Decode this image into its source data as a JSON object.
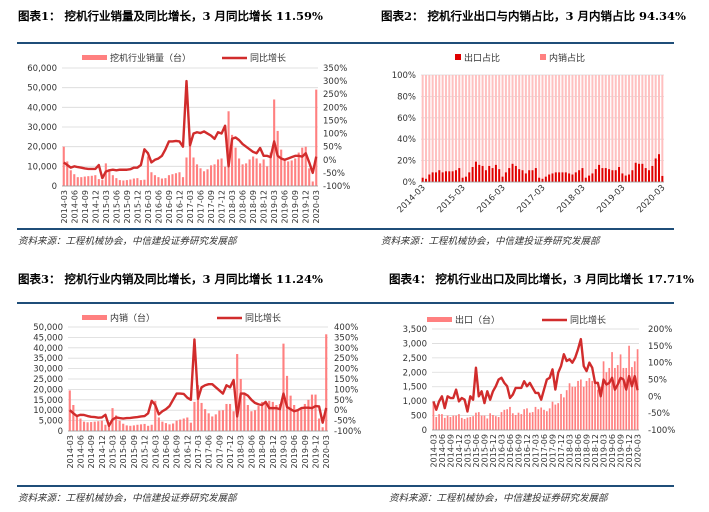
{
  "source": "资料来源：工程机械协会，中信建投证券研究发展部",
  "chart_data": [
    {
      "type": "bar+line",
      "title": "图表1：  挖机行业销量及同比增长，3 月同比增长 11.59%",
      "legend": [
        "挖机行业销量（台）",
        "同比增长"
      ],
      "legend_placement": "top",
      "y_left": {
        "ticks": [
          "0",
          "10,000",
          "20,000",
          "30,000",
          "40,000",
          "50,000",
          "60,000"
        ],
        "range": [
          0,
          60000
        ]
      },
      "y_right": {
        "ticks": [
          "-100%",
          "-50%",
          "0%",
          "50%",
          "100%",
          "150%",
          "200%",
          "250%",
          "300%",
          "350%"
        ],
        "range": [
          -100,
          350
        ]
      },
      "x_start": "2014-03",
      "x_end": "2020-03",
      "x_ticks": [
        "2014-03",
        "2014-06",
        "2014-09",
        "2014-12",
        "2015-03",
        "2015-06",
        "2015-09",
        "2015-12",
        "2016-03",
        "2016-06",
        "2016-09",
        "2016-12",
        "2017-03",
        "2017-06",
        "2017-09",
        "2017-12",
        "2018-03",
        "2018-06",
        "2018-09",
        "2018-12",
        "2019-03",
        "2019-06",
        "2019-09",
        "2019-12",
        "2020-03"
      ],
      "bars": [
        20000,
        12500,
        8000,
        6000,
        4500,
        4500,
        4800,
        5000,
        5200,
        5500,
        3500,
        3000,
        11500,
        7500,
        5500,
        4000,
        3000,
        2800,
        3000,
        3300,
        3800,
        4000,
        3000,
        3200,
        15000,
        7000,
        5500,
        4500,
        3800,
        4000,
        5500,
        6000,
        6500,
        7000,
        4500,
        14500,
        23000,
        14500,
        11000,
        9000,
        7500,
        8500,
        10500,
        11000,
        13500,
        14000,
        9800,
        38000,
        26000,
        19500,
        14000,
        11000,
        11500,
        13500,
        15000,
        14000,
        11500,
        13500,
        10000,
        17000,
        44000,
        28000,
        18500,
        14000,
        12500,
        13000,
        14000,
        17000,
        19500,
        20000,
        9000,
        2300,
        49000
      ],
      "line": [
        -10,
        -20,
        -30,
        -25,
        -28,
        -30,
        -33,
        -35,
        -35,
        -35,
        -20,
        -70,
        -45,
        -40,
        -38,
        -40,
        -38,
        -38,
        -38,
        -36,
        -30,
        -30,
        -20,
        40,
        25,
        -10,
        0,
        5,
        15,
        40,
        70,
        70,
        72,
        70,
        50,
        300,
        55,
        100,
        105,
        102,
        108,
        100,
        92,
        80,
        105,
        100,
        130,
        -25,
        80,
        85,
        75,
        60,
        50,
        40,
        30,
        25,
        45,
        15,
        15,
        10,
        70,
        15,
        5,
        0,
        5,
        10,
        15,
        15,
        12,
        25,
        -10,
        -50,
        12
      ]
    },
    {
      "type": "stacked-bar",
      "title": "图表2：  挖机行业出口与内销占比，3 月内销占比 94.34%",
      "legend": [
        "出口占比",
        "内销占比"
      ],
      "legend_placement": "top",
      "y_left": {
        "ticks": [
          "0%",
          "20%",
          "40%",
          "60%",
          "80%",
          "100%"
        ],
        "range": [
          0,
          100
        ]
      },
      "x_ticks": [
        "2014-03",
        "2015-03",
        "2016-03",
        "2017-03",
        "2018-03",
        "2019-03",
        "2020-03"
      ],
      "bars": [
        4,
        3,
        7,
        9,
        9,
        11,
        9,
        10,
        10,
        10,
        11,
        13,
        4,
        5,
        9,
        14,
        19,
        16,
        15,
        11,
        15,
        13,
        16,
        12,
        5,
        9,
        13,
        17,
        15,
        12,
        11,
        8,
        11,
        11,
        13,
        4,
        3,
        5,
        7,
        8,
        9,
        9,
        9,
        9,
        8,
        7,
        9,
        11,
        13,
        4,
        6,
        8,
        12,
        16,
        13,
        13,
        12,
        11,
        11,
        14,
        8,
        6,
        7,
        11,
        18,
        17,
        17,
        13,
        11,
        15,
        22,
        26,
        5.66
      ]
    },
    {
      "type": "bar+line",
      "title": "图表3：  挖机行业内销及同比增长，3 月同比增长 11.24%",
      "legend": [
        "内销（台）",
        "同比增长"
      ],
      "legend_placement": "top",
      "y_left": {
        "ticks": [
          "0",
          "5,000",
          "10,000",
          "15,000",
          "20,000",
          "25,000",
          "30,000",
          "35,000",
          "40,000",
          "45,000",
          "50,000"
        ],
        "range": [
          0,
          50000
        ]
      },
      "y_right": {
        "ticks": [
          "-100%",
          "-50%",
          "0%",
          "50%",
          "100%",
          "150%",
          "200%",
          "250%",
          "300%",
          "350%",
          "400%"
        ],
        "range": [
          -100,
          400
        ]
      },
      "x_ticks": [
        "2014-03",
        "2014-06",
        "2014-09",
        "2014-12",
        "2015-03",
        "2015-06",
        "2015-09",
        "2015-12",
        "2016-03",
        "2016-06",
        "2016-09",
        "2016-12",
        "2017-03",
        "2017-06",
        "2017-09",
        "2017-12",
        "2018-03",
        "2018-06",
        "2018-09",
        "2018-12",
        "2019-03",
        "2019-06",
        "2019-09",
        "2019-12",
        "2020-03"
      ],
      "bars": [
        19500,
        12500,
        7500,
        6000,
        4500,
        4200,
        4300,
        4500,
        4700,
        5000,
        3000,
        2700,
        11000,
        7500,
        5000,
        3500,
        2700,
        2500,
        2700,
        3000,
        3200,
        3400,
        2500,
        3000,
        14500,
        6500,
        4500,
        3800,
        3200,
        3600,
        5000,
        5500,
        6000,
        6500,
        4000,
        14000,
        22000,
        13500,
        10500,
        8500,
        7000,
        8000,
        9800,
        10000,
        13000,
        13000,
        9500,
        37000,
        25000,
        17500,
        12500,
        9500,
        10000,
        12000,
        14000,
        14000,
        14500,
        14000,
        12500,
        13000,
        42000,
        26500,
        17000,
        12500,
        10000,
        11000,
        13000,
        15000,
        17500,
        17500,
        6000,
        1800,
        46500
      ],
      "line": [
        0,
        -15,
        -28,
        -22,
        -23,
        -28,
        -32,
        -33,
        -36,
        -35,
        -22,
        -75,
        -45,
        -35,
        -38,
        -40,
        -38,
        -37,
        -35,
        -33,
        -30,
        -28,
        -15,
        45,
        25,
        -20,
        -5,
        5,
        20,
        50,
        80,
        80,
        78,
        60,
        50,
        340,
        55,
        110,
        120,
        125,
        125,
        110,
        95,
        80,
        120,
        110,
        145,
        -30,
        80,
        80,
        70,
        50,
        35,
        28,
        25,
        40,
        10,
        10,
        10,
        5,
        80,
        15,
        5,
        -5,
        0,
        10,
        12,
        12,
        10,
        20,
        18,
        -60,
        11
      ]
    },
    {
      "type": "bar+line",
      "title": "图表4：  挖机行业出口及同比增长，3 月同比增长 17.71%",
      "legend": [
        "出口（台）",
        "同比增长"
      ],
      "legend_placement": "top",
      "y_left": {
        "ticks": [
          "0",
          "500",
          "1,000",
          "1,500",
          "2,000",
          "2,500",
          "3,000",
          "3,500"
        ],
        "range": [
          0,
          3500
        ]
      },
      "y_right": {
        "ticks": [
          "-100%",
          "-50%",
          "0%",
          "50%",
          "100%",
          "150%",
          "200%"
        ],
        "range": [
          -100,
          200
        ]
      },
      "x_ticks": [
        "2014-03",
        "2014-06",
        "2014-09",
        "2014-12",
        "2015-03",
        "2015-06",
        "2015-09",
        "2015-12",
        "2016-03",
        "2016-06",
        "2016-09",
        "2016-12",
        "2017-03",
        "2017-06",
        "2017-09",
        "2017-12",
        "2018-03",
        "2018-06",
        "2018-09",
        "2018-12",
        "2019-03",
        "2019-06",
        "2019-09",
        "2019-12",
        "2020-03"
      ],
      "bars": [
        950,
        450,
        550,
        550,
        420,
        500,
        450,
        500,
        500,
        550,
        420,
        380,
        430,
        450,
        480,
        600,
        620,
        500,
        500,
        400,
        580,
        520,
        480,
        450,
        620,
        700,
        720,
        800,
        580,
        520,
        600,
        550,
        720,
        750,
        600,
        620,
        800,
        720,
        780,
        700,
        650,
        750,
        980,
        880,
        930,
        1250,
        1130,
        1380,
        1620,
        1500,
        1500,
        1700,
        1750,
        1500,
        1700,
        1800,
        1700,
        1600,
        1400,
        1500,
        2380,
        2000,
        2150,
        2700,
        2150,
        2250,
        2620,
        2150,
        2150,
        2920,
        2180,
        2380,
        2800
      ],
      "line": [
        -15,
        -40,
        -15,
        0,
        -35,
        0,
        -5,
        -5,
        20,
        -15,
        -5,
        -10,
        -45,
        0,
        -10,
        85,
        0,
        15,
        -20,
        15,
        -10,
        15,
        30,
        50,
        55,
        40,
        30,
        -5,
        5,
        25,
        25,
        25,
        45,
        30,
        40,
        25,
        10,
        10,
        -10,
        20,
        50,
        55,
        80,
        20,
        70,
        90,
        125,
        105,
        110,
        100,
        115,
        140,
        170,
        90,
        75,
        100,
        85,
        40,
        40,
        0,
        50,
        35,
        40,
        55,
        20,
        35,
        55,
        50,
        20,
        60,
        30,
        60,
        18
      ]
    }
  ],
  "colors": {
    "bar": "#ff8080",
    "bar_light": "#ffc0c0",
    "line": "#d12c2c",
    "export_bar": "#e00000",
    "rule": "#1f4e79"
  }
}
